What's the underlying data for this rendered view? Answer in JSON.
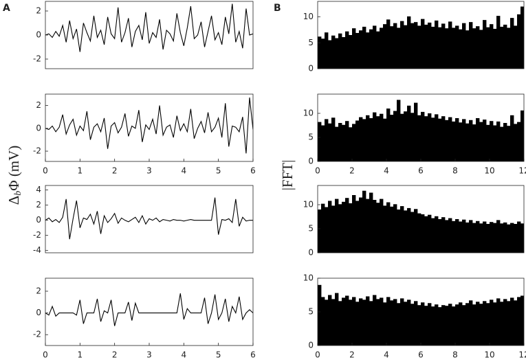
{
  "figure": {
    "panel_labels": [
      "A",
      "B"
    ],
    "ylabel_left": {
      "symbol": "Δ",
      "subscript": "b",
      "rest": "Φ (mV)"
    },
    "ylabel_right": "|FFT|"
  },
  "chart_data": [
    {
      "type": "line",
      "color": "#000000",
      "xlim": [
        0,
        6
      ],
      "ylim": [
        -2.8,
        2.8
      ],
      "yticks": [
        -2,
        0,
        2
      ],
      "x": [
        0,
        0.1,
        0.2,
        0.3,
        0.4,
        0.5,
        0.6,
        0.7,
        0.8,
        0.9,
        1,
        1.1,
        1.2,
        1.3,
        1.4,
        1.5,
        1.6,
        1.7,
        1.8,
        1.9,
        2,
        2.1,
        2.2,
        2.3,
        2.4,
        2.5,
        2.6,
        2.7,
        2.8,
        2.9,
        3,
        3.1,
        3.2,
        3.3,
        3.4,
        3.5,
        3.6,
        3.7,
        3.8,
        3.9,
        4,
        4.1,
        4.2,
        4.3,
        4.4,
        4.5,
        4.6,
        4.7,
        4.8,
        4.9,
        5,
        5.1,
        5.2,
        5.3,
        5.4,
        5.5,
        5.6,
        5.7,
        5.8,
        5.9,
        6
      ],
      "values": [
        0,
        0.1,
        -0.2,
        0.3,
        -0.1,
        0.8,
        -0.6,
        1.2,
        -0.3,
        0.5,
        -1.4,
        1.0,
        0.2,
        -0.5,
        1.6,
        -0.2,
        0.4,
        -0.8,
        1.5,
        0.1,
        -0.3,
        2.3,
        -0.6,
        0.2,
        1.4,
        -1.0,
        0.3,
        0.8,
        -0.4,
        1.9,
        -0.7,
        0.2,
        -0.2,
        1.3,
        -1.2,
        0.4,
        0.1,
        -0.5,
        1.8,
        0.2,
        -0.9,
        0.6,
        2.4,
        -0.3,
        0.0,
        1.1,
        -1.0,
        0.3,
        1.6,
        -0.4,
        0.2,
        -0.8,
        1.5,
        0.1,
        2.6,
        -0.6,
        0.3,
        -1.1,
        2.2,
        0.0,
        0.1
      ]
    },
    {
      "type": "line",
      "color": "#000000",
      "xlim": [
        0,
        6
      ],
      "xticks": [
        0,
        1,
        2,
        3,
        4,
        5,
        6
      ],
      "ylim": [
        -2.9,
        3.0
      ],
      "yticks": [
        -2,
        0,
        2
      ],
      "x": [
        0,
        0.1,
        0.2,
        0.3,
        0.4,
        0.5,
        0.6,
        0.7,
        0.8,
        0.9,
        1,
        1.1,
        1.2,
        1.3,
        1.4,
        1.5,
        1.6,
        1.7,
        1.8,
        1.9,
        2,
        2.1,
        2.2,
        2.3,
        2.4,
        2.5,
        2.6,
        2.7,
        2.8,
        2.9,
        3,
        3.1,
        3.2,
        3.3,
        3.4,
        3.5,
        3.6,
        3.7,
        3.8,
        3.9,
        4,
        4.1,
        4.2,
        4.3,
        4.4,
        4.5,
        4.6,
        4.7,
        4.8,
        4.9,
        5,
        5.1,
        5.2,
        5.3,
        5.4,
        5.5,
        5.6,
        5.7,
        5.8,
        5.9,
        6
      ],
      "values": [
        0,
        -0.1,
        0.2,
        -0.3,
        0.1,
        1.2,
        -0.5,
        0.3,
        0.8,
        -0.6,
        0.2,
        -0.2,
        1.5,
        -1.0,
        0.1,
        0.4,
        -0.3,
        0.9,
        -1.8,
        0.2,
        0.5,
        -0.4,
        0.1,
        1.3,
        -0.7,
        0.2,
        0.0,
        1.6,
        -1.2,
        0.3,
        -0.1,
        0.8,
        -0.5,
        2.0,
        -0.6,
        0.1,
        0.3,
        -0.8,
        1.1,
        -0.2,
        0.4,
        -0.3,
        1.7,
        -0.9,
        0.0,
        0.6,
        -0.4,
        1.4,
        -0.3,
        0.1,
        0.9,
        -0.8,
        2.2,
        -1.6,
        0.2,
        0.1,
        -0.3,
        1.0,
        -2.2,
        2.7,
        -0.1
      ]
    },
    {
      "type": "line",
      "color": "#000000",
      "xlim": [
        0,
        6
      ],
      "ylim": [
        -4.3,
        4.6
      ],
      "yticks": [
        -4,
        -2,
        0,
        2,
        4
      ],
      "x": [
        0,
        0.1,
        0.2,
        0.3,
        0.4,
        0.5,
        0.6,
        0.7,
        0.8,
        0.9,
        1,
        1.1,
        1.2,
        1.3,
        1.4,
        1.5,
        1.6,
        1.7,
        1.8,
        1.9,
        2,
        2.1,
        2.2,
        2.3,
        2.4,
        2.5,
        2.6,
        2.7,
        2.8,
        2.9,
        3,
        3.1,
        3.2,
        3.3,
        3.4,
        3.5,
        3.6,
        3.7,
        3.8,
        3.9,
        4,
        4.1,
        4.2,
        4.3,
        4.4,
        4.5,
        4.6,
        4.7,
        4.8,
        4.9,
        5,
        5.1,
        5.2,
        5.3,
        5.4,
        5.5,
        5.6,
        5.7,
        5.8,
        5.9,
        6
      ],
      "values": [
        0,
        0.3,
        -0.2,
        0.1,
        -0.3,
        0.4,
        2.8,
        -2.5,
        0.2,
        2.6,
        -1.0,
        0.3,
        0.1,
        0.8,
        -0.5,
        1.2,
        -1.8,
        0.6,
        -0.3,
        0.2,
        0.9,
        -0.4,
        0.3,
        0.0,
        -0.2,
        0.1,
        0.4,
        -0.3,
        0.6,
        -0.5,
        0.2,
        0.0,
        0.3,
        -0.2,
        0.1,
        0.0,
        -0.1,
        0.1,
        0.0,
        0.0,
        -0.1,
        0.0,
        0.1,
        0.0,
        0.0,
        0.0,
        0.0,
        0.0,
        0.0,
        3.0,
        -1.9,
        0.1,
        0.0,
        0.2,
        -0.3,
        2.8,
        -0.8,
        0.4,
        -0.1,
        0.0,
        0.0
      ]
    },
    {
      "type": "line",
      "color": "#000000",
      "xlim": [
        0,
        6
      ],
      "xticks": [
        0,
        1,
        2,
        3,
        4,
        5,
        6
      ],
      "ylim": [
        -3.0,
        3.2
      ],
      "yticks": [
        -2,
        0,
        2
      ],
      "x": [
        0,
        0.1,
        0.2,
        0.3,
        0.4,
        0.5,
        0.6,
        0.7,
        0.8,
        0.9,
        1,
        1.1,
        1.2,
        1.3,
        1.4,
        1.5,
        1.6,
        1.7,
        1.8,
        1.9,
        2,
        2.1,
        2.2,
        2.3,
        2.4,
        2.5,
        2.6,
        2.7,
        2.8,
        2.9,
        3,
        3.1,
        3.2,
        3.3,
        3.4,
        3.5,
        3.6,
        3.7,
        3.8,
        3.9,
        4,
        4.1,
        4.2,
        4.3,
        4.4,
        4.5,
        4.6,
        4.7,
        4.8,
        4.9,
        5,
        5.1,
        5.2,
        5.3,
        5.4,
        5.5,
        5.6,
        5.7,
        5.8,
        5.9,
        6
      ],
      "values": [
        0,
        -0.2,
        0.6,
        -0.3,
        0,
        0,
        0,
        0,
        0,
        -0.2,
        1.2,
        -1.0,
        0,
        0,
        0,
        1.3,
        -0.8,
        0.2,
        0,
        1.2,
        -1.2,
        0,
        0,
        0,
        1.0,
        -0.7,
        0.9,
        0,
        0,
        0,
        0,
        0,
        0,
        0,
        0,
        0,
        0,
        0,
        0,
        1.8,
        -0.6,
        0.4,
        0,
        0,
        0,
        0,
        1.4,
        -1.0,
        0,
        1.7,
        -0.6,
        0,
        1.3,
        -0.8,
        0.6,
        0,
        1.5,
        -0.6,
        0,
        0.3,
        0
      ]
    },
    {
      "type": "spectrum",
      "color": "#000000",
      "xlim": [
        0,
        12
      ],
      "ylim": [
        0,
        13
      ],
      "yticks": [
        0,
        5,
        10
      ],
      "x": [
        0,
        0.2,
        0.4,
        0.6,
        0.8,
        1,
        1.2,
        1.4,
        1.6,
        1.8,
        2,
        2.2,
        2.4,
        2.6,
        2.8,
        3,
        3.2,
        3.4,
        3.6,
        3.8,
        4,
        4.2,
        4.4,
        4.6,
        4.8,
        5,
        5.2,
        5.4,
        5.6,
        5.8,
        6,
        6.2,
        6.4,
        6.6,
        6.8,
        7,
        7.2,
        7.4,
        7.6,
        7.8,
        8,
        8.2,
        8.4,
        8.6,
        8.8,
        9,
        9.2,
        9.4,
        9.6,
        9.8,
        10,
        10.2,
        10.4,
        10.6,
        10.8,
        11,
        11.2,
        11.4,
        11.6,
        11.8
      ],
      "values": [
        6.2,
        5.8,
        7.0,
        5.5,
        6.4,
        5.9,
        6.8,
        6.1,
        7.2,
        6.5,
        7.8,
        6.9,
        7.4,
        8.1,
        7.0,
        7.6,
        8.3,
        7.2,
        7.9,
        8.6,
        9.5,
        8.2,
        8.8,
        7.9,
        9.2,
        8.4,
        10.1,
        8.8,
        9.0,
        8.3,
        9.6,
        8.5,
        8.9,
        8.1,
        9.3,
        8.0,
        8.7,
        7.8,
        9.1,
        7.9,
        8.3,
        7.6,
        8.8,
        7.4,
        9.0,
        7.8,
        8.2,
        7.5,
        9.4,
        8.0,
        8.6,
        7.7,
        10.2,
        8.1,
        8.5,
        7.9,
        9.8,
        8.3,
        10.5,
        12.0
      ]
    },
    {
      "type": "spectrum",
      "color": "#000000",
      "xlim": [
        0,
        12
      ],
      "xticks": [
        0,
        2,
        4,
        6,
        8,
        10,
        12
      ],
      "ylim": [
        0,
        14
      ],
      "yticks": [
        0,
        5,
        10
      ],
      "x": [
        0,
        0.2,
        0.4,
        0.6,
        0.8,
        1,
        1.2,
        1.4,
        1.6,
        1.8,
        2,
        2.2,
        2.4,
        2.6,
        2.8,
        3,
        3.2,
        3.4,
        3.6,
        3.8,
        4,
        4.2,
        4.4,
        4.6,
        4.8,
        5,
        5.2,
        5.4,
        5.6,
        5.8,
        6,
        6.2,
        6.4,
        6.6,
        6.8,
        7,
        7.2,
        7.4,
        7.6,
        7.8,
        8,
        8.2,
        8.4,
        8.6,
        8.8,
        9,
        9.2,
        9.4,
        9.6,
        9.8,
        10,
        10.2,
        10.4,
        10.6,
        10.8,
        11,
        11.2,
        11.4,
        11.6,
        11.8
      ],
      "values": [
        8.2,
        7.5,
        8.8,
        7.9,
        9.1,
        7.2,
        8.0,
        7.6,
        8.4,
        7.1,
        7.8,
        8.5,
        9.2,
        8.8,
        9.6,
        9.0,
        10.2,
        9.4,
        9.9,
        8.9,
        11.0,
        9.7,
        10.5,
        12.8,
        9.9,
        10.4,
        11.6,
        10.1,
        12.2,
        9.6,
        10.3,
        9.4,
        10.0,
        9.1,
        9.8,
        8.9,
        9.4,
        8.6,
        9.2,
        8.3,
        9.0,
        8.1,
        8.8,
        7.9,
        8.6,
        7.7,
        9.0,
        8.2,
        8.7,
        7.6,
        8.4,
        7.5,
        8.3,
        7.2,
        8.0,
        7.4,
        9.6,
        7.8,
        8.2,
        10.6
      ]
    },
    {
      "type": "spectrum",
      "color": "#000000",
      "xlim": [
        0,
        12
      ],
      "ylim": [
        0,
        14
      ],
      "yticks": [
        0,
        5,
        10
      ],
      "x": [
        0,
        0.2,
        0.4,
        0.6,
        0.8,
        1,
        1.2,
        1.4,
        1.6,
        1.8,
        2,
        2.2,
        2.4,
        2.6,
        2.8,
        3,
        3.2,
        3.4,
        3.6,
        3.8,
        4,
        4.2,
        4.4,
        4.6,
        4.8,
        5,
        5.2,
        5.4,
        5.6,
        5.8,
        6,
        6.2,
        6.4,
        6.6,
        6.8,
        7,
        7.2,
        7.4,
        7.6,
        7.8,
        8,
        8.2,
        8.4,
        8.6,
        8.8,
        9,
        9.2,
        9.4,
        9.6,
        9.8,
        10,
        10.2,
        10.4,
        10.6,
        10.8,
        11,
        11.2,
        11.4,
        11.6,
        11.8
      ],
      "values": [
        9.0,
        10.2,
        9.5,
        10.8,
        9.8,
        11.2,
        10.1,
        10.6,
        11.4,
        10.3,
        12.0,
        10.8,
        11.5,
        12.9,
        11.2,
        12.5,
        11.0,
        10.4,
        11.2,
        9.8,
        10.5,
        9.6,
        10.1,
        9.0,
        9.7,
        8.8,
        9.3,
        8.5,
        9.1,
        8.2,
        8.0,
        7.6,
        7.9,
        7.2,
        7.6,
        7.0,
        7.4,
        6.8,
        7.2,
        6.6,
        7.0,
        6.5,
        6.9,
        6.3,
        6.8,
        6.2,
        6.6,
        6.1,
        6.5,
        6.0,
        6.4,
        6.2,
        6.8,
        6.1,
        6.3,
        5.9,
        6.2,
        6.0,
        6.5,
        6.1
      ]
    },
    {
      "type": "spectrum",
      "color": "#000000",
      "xlim": [
        0,
        12
      ],
      "xticks": [
        0,
        2,
        4,
        6,
        8,
        10,
        12
      ],
      "ylim": [
        0,
        10
      ],
      "yticks": [
        0,
        5,
        10
      ],
      "x": [
        0,
        0.2,
        0.4,
        0.6,
        0.8,
        1,
        1.2,
        1.4,
        1.6,
        1.8,
        2,
        2.2,
        2.4,
        2.6,
        2.8,
        3,
        3.2,
        3.4,
        3.6,
        3.8,
        4,
        4.2,
        4.4,
        4.6,
        4.8,
        5,
        5.2,
        5.4,
        5.6,
        5.8,
        6,
        6.2,
        6.4,
        6.6,
        6.8,
        7,
        7.2,
        7.4,
        7.6,
        7.8,
        8,
        8.2,
        8.4,
        8.6,
        8.8,
        9,
        9.2,
        9.4,
        9.6,
        9.8,
        10,
        10.2,
        10.4,
        10.6,
        10.8,
        11,
        11.2,
        11.4,
        11.6,
        11.8
      ],
      "values": [
        9.0,
        7.2,
        6.8,
        7.5,
        6.9,
        7.8,
        6.6,
        7.1,
        7.4,
        6.8,
        7.2,
        6.5,
        7.0,
        6.8,
        7.3,
        6.6,
        7.5,
        6.9,
        7.1,
        6.4,
        7.2,
        6.7,
        6.9,
        6.3,
        7.0,
        6.5,
        6.8,
        6.2,
        6.6,
        6.0,
        6.4,
        5.9,
        6.3,
        5.8,
        6.1,
        5.7,
        6.0,
        5.9,
        6.2,
        5.8,
        6.1,
        6.4,
        6.0,
        6.3,
        6.7,
        6.1,
        6.5,
        6.2,
        6.6,
        6.3,
        6.8,
        6.4,
        7.0,
        6.5,
        6.9,
        6.6,
        7.1,
        6.7,
        7.2,
        7.4
      ]
    }
  ]
}
